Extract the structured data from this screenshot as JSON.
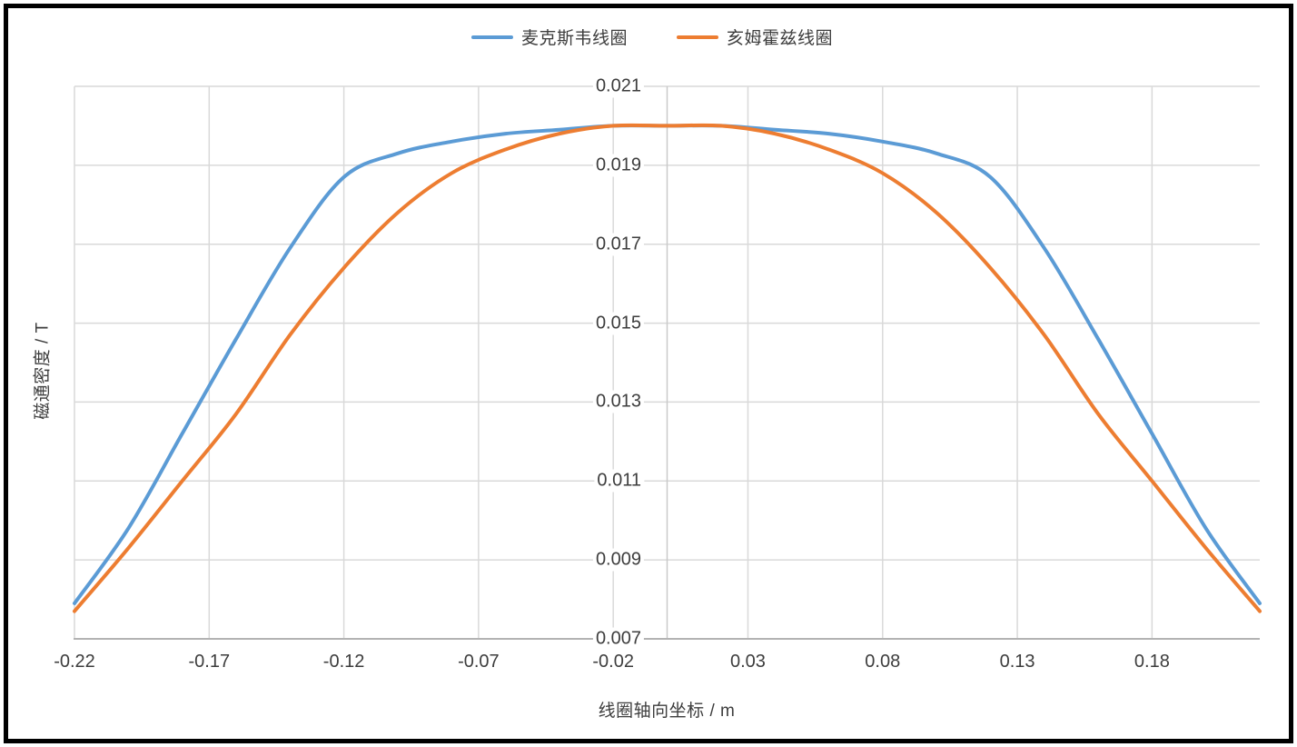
{
  "legend": {
    "items": [
      {
        "label": "麦克斯韦线圈",
        "color": "#5B9BD5"
      },
      {
        "label": "亥姆霍兹线圈",
        "color": "#ED7D31"
      }
    ]
  },
  "chart_data": {
    "type": "line",
    "title": "",
    "legend_position": "top",
    "grid": true,
    "x_axis": {
      "title": "线圈轴向坐标 / m",
      "min": -0.22,
      "max": 0.22,
      "tick_start": -0.22,
      "tick_step": 0.05,
      "tick_labels": [
        "-0.22",
        "-0.17",
        "-0.12",
        "-0.07",
        "-0.02",
        "0.03",
        "0.08",
        "0.13",
        "0.18"
      ]
    },
    "y_axis": {
      "title": "磁通密度 / T",
      "min": 0.007,
      "max": 0.021,
      "tick_start": 0.007,
      "tick_step": 0.002,
      "tick_labels": [
        "0.007",
        "0.009",
        "0.011",
        "0.013",
        "0.015",
        "0.017",
        "0.019",
        "0.021"
      ],
      "crosses_at_x": 0
    },
    "x": [
      -0.22,
      -0.2,
      -0.18,
      -0.16,
      -0.14,
      -0.12,
      -0.1,
      -0.08,
      -0.06,
      -0.04,
      -0.02,
      0,
      0.02,
      0.04,
      0.06,
      0.08,
      0.1,
      0.12,
      0.14,
      0.16,
      0.18,
      0.2,
      0.22
    ],
    "series": [
      {
        "name": "麦克斯韦线圈",
        "color": "#5B9BD5",
        "values": [
          0.0079,
          0.0098,
          0.0122,
          0.0146,
          0.0169,
          0.0187,
          0.0193,
          0.0196,
          0.0198,
          0.0199,
          0.02,
          0.02,
          0.02,
          0.0199,
          0.0198,
          0.0196,
          0.0193,
          0.0187,
          0.0169,
          0.0146,
          0.0122,
          0.0098,
          0.0079
        ]
      },
      {
        "name": "亥姆霍兹线圈",
        "color": "#ED7D31",
        "values": [
          0.0077,
          0.0093,
          0.011,
          0.0127,
          0.0147,
          0.0164,
          0.0178,
          0.0188,
          0.0194,
          0.0198,
          0.02,
          0.02,
          0.02,
          0.0198,
          0.0194,
          0.0188,
          0.0178,
          0.0164,
          0.0147,
          0.0127,
          0.011,
          0.0093,
          0.0077
        ]
      }
    ]
  },
  "colors": {
    "background": "#FFFFFF",
    "frame_border": "#000000",
    "gridline": "#D9D9D9",
    "value_axis_line": "#C9C9C9",
    "category_axis_line": "#B3B3B3",
    "text": "#3D3D3D"
  }
}
